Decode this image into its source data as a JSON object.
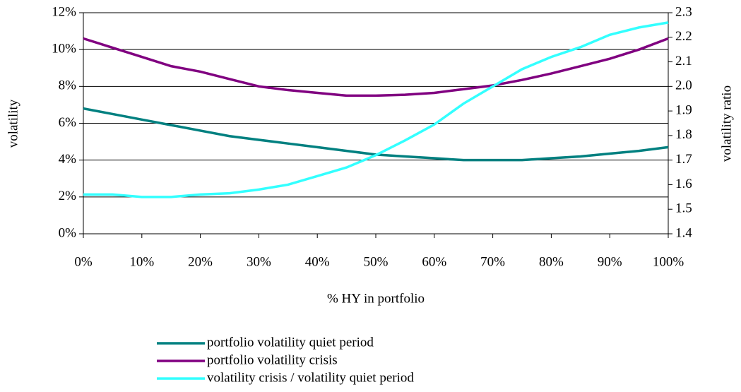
{
  "chart_data": {
    "type": "line",
    "x_label": "% HY in portfolio",
    "y_label": "volatility",
    "y2_label": "volatility ratio",
    "x": [
      0,
      5,
      10,
      15,
      20,
      25,
      30,
      35,
      40,
      45,
      50,
      55,
      60,
      65,
      70,
      75,
      80,
      85,
      90,
      95,
      100
    ],
    "series": [
      {
        "name": "portfolio volatility quiet period",
        "color": "#008080",
        "axis": "y",
        "values": [
          6.8,
          6.5,
          6.2,
          5.9,
          5.6,
          5.3,
          5.1,
          4.9,
          4.7,
          4.5,
          4.3,
          4.2,
          4.1,
          4.0,
          4.0,
          4.0,
          4.1,
          4.2,
          4.35,
          4.5,
          4.7
        ]
      },
      {
        "name": "portfolio volatility crisis",
        "color": "#800080",
        "axis": "y",
        "values": [
          10.6,
          10.1,
          9.6,
          9.1,
          8.8,
          8.4,
          8.0,
          7.8,
          7.65,
          7.5,
          7.5,
          7.55,
          7.65,
          7.85,
          8.05,
          8.35,
          8.7,
          9.1,
          9.5,
          10.0,
          10.6
        ]
      },
      {
        "name": "volatility crisis / volatility quiet period",
        "color": "#33ffff",
        "axis": "y2",
        "values": [
          1.56,
          1.56,
          1.55,
          1.55,
          1.56,
          1.565,
          1.58,
          1.6,
          1.635,
          1.67,
          1.72,
          1.78,
          1.845,
          1.93,
          2.0,
          2.07,
          2.12,
          2.16,
          2.21,
          2.24,
          2.26
        ]
      }
    ],
    "xlim": [
      0,
      100
    ],
    "xticks": [
      {
        "value": 0,
        "label": "0%"
      },
      {
        "value": 10,
        "label": "10%"
      },
      {
        "value": 20,
        "label": "20%"
      },
      {
        "value": 30,
        "label": "30%"
      },
      {
        "value": 40,
        "label": "40%"
      },
      {
        "value": 50,
        "label": "50%"
      },
      {
        "value": 60,
        "label": "60%"
      },
      {
        "value": 70,
        "label": "70%"
      },
      {
        "value": 80,
        "label": "80%"
      },
      {
        "value": 90,
        "label": "90%"
      },
      {
        "value": 100,
        "label": "100%"
      }
    ],
    "ylim": [
      0,
      12
    ],
    "yticks": [
      {
        "value": 0,
        "label": "0%"
      },
      {
        "value": 2,
        "label": "2%"
      },
      {
        "value": 4,
        "label": "4%"
      },
      {
        "value": 6,
        "label": "6%"
      },
      {
        "value": 8,
        "label": "8%"
      },
      {
        "value": 10,
        "label": "10%"
      },
      {
        "value": 12,
        "label": "12%"
      }
    ],
    "y2lim": [
      1.4,
      2.3
    ],
    "y2ticks": [
      1.4,
      1.5,
      1.6,
      1.7,
      1.8,
      1.9,
      {
        "value": 2,
        "label": "2.0"
      },
      2.1,
      2.2,
      2.3
    ],
    "grid": true,
    "legend": "bottom"
  }
}
